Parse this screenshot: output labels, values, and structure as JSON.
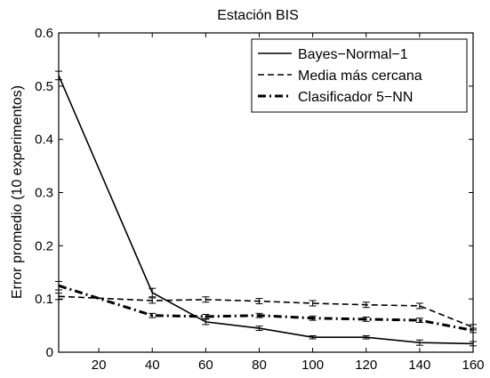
{
  "chart_data": {
    "type": "line",
    "title": "Estación BIS",
    "xlabel": "",
    "ylabel": "Error promedio (10 experimentos)",
    "xlim": [
      5,
      160
    ],
    "ylim": [
      0,
      0.6
    ],
    "xticks": [
      20,
      40,
      60,
      80,
      100,
      120,
      140,
      160
    ],
    "yticks": [
      0,
      0.1,
      0.2,
      0.3,
      0.4,
      0.5,
      0.6
    ],
    "grid": false,
    "legend_position": "top-right",
    "x": [
      5,
      40,
      60,
      80,
      100,
      120,
      140,
      160
    ],
    "series": [
      {
        "name": "Bayes−Normal−1",
        "style": "solid",
        "color": "#000000",
        "values": [
          0.52,
          0.112,
          0.057,
          0.045,
          0.028,
          0.028,
          0.018,
          0.016
        ],
        "errors": [
          0.008,
          0.008,
          0.005,
          0.004,
          0.003,
          0.003,
          0.005,
          0.004
        ]
      },
      {
        "name": "Media más cercana",
        "style": "dashed",
        "color": "#000000",
        "values": [
          0.105,
          0.097,
          0.099,
          0.096,
          0.092,
          0.089,
          0.087,
          0.047
        ],
        "errors": [
          0.006,
          0.005,
          0.005,
          0.005,
          0.005,
          0.005,
          0.005,
          0.005
        ]
      },
      {
        "name": "Clasificador 5−NN",
        "style": "dashdot",
        "color": "#000000",
        "values": [
          0.125,
          0.069,
          0.067,
          0.069,
          0.064,
          0.062,
          0.06,
          0.041
        ],
        "errors": [
          0.008,
          0.004,
          0.004,
          0.004,
          0.004,
          0.004,
          0.004,
          0.004
        ]
      }
    ]
  }
}
